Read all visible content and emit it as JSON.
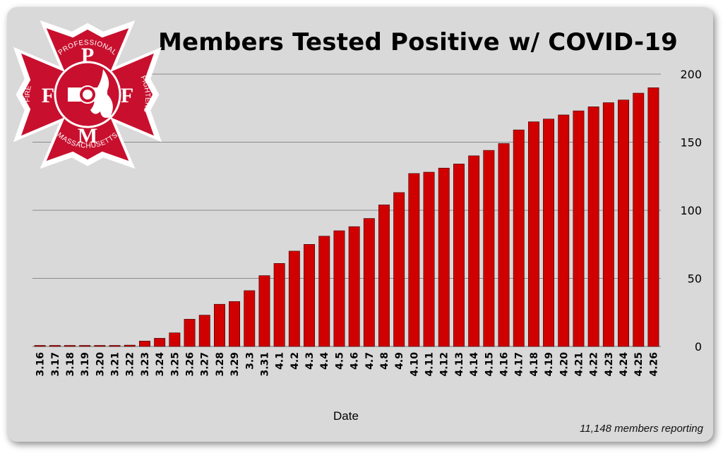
{
  "logo": {
    "top_letter": "P",
    "left_letter": "F",
    "right_letter": "F",
    "bottom_letter": "M",
    "arc_top": "PROFESSIONAL",
    "arc_left": "FIRE",
    "arc_right": "FIGHTERS",
    "arc_bottom": "MASSACHUSETTS",
    "colors": {
      "red": "#c8102e",
      "white": "#ffffff"
    }
  },
  "footnote": "11,148 members reporting",
  "chart_data": {
    "type": "bar",
    "title": "Members Tested Positive w/ COVID-19",
    "xlabel": "Date",
    "ylabel": "",
    "ylim": [
      0,
      200
    ],
    "yticks": [
      0,
      50,
      100,
      150,
      200
    ],
    "y_axis_side": "right",
    "grid": true,
    "bar_color": "#d10000",
    "categories": [
      "3.16",
      "3.17",
      "3.18",
      "3.19",
      "3.20",
      "3.21",
      "3.22",
      "3.23",
      "3.24",
      "3.25",
      "3.26",
      "3.27",
      "3.28",
      "3.29",
      "3.3",
      "3.31",
      "4.1",
      "4.2",
      "4.3",
      "4.4",
      "4.5",
      "4.6",
      "4.7",
      "4.8",
      "4.9",
      "4.10",
      "4.11",
      "4.12",
      "4.13",
      "4.14",
      "4.15",
      "4.16",
      "4.17",
      "4.18",
      "4.19",
      "4.20",
      "4.21",
      "4.22",
      "4.23",
      "4.24",
      "4.25",
      "4.26"
    ],
    "values": [
      0,
      0,
      0,
      0,
      0,
      0,
      1,
      4,
      6,
      10,
      20,
      23,
      31,
      33,
      41,
      52,
      61,
      70,
      75,
      81,
      85,
      88,
      94,
      104,
      113,
      127,
      128,
      131,
      134,
      140,
      144,
      149,
      159,
      165,
      167,
      170,
      173,
      176,
      179,
      181,
      186,
      190
    ]
  }
}
